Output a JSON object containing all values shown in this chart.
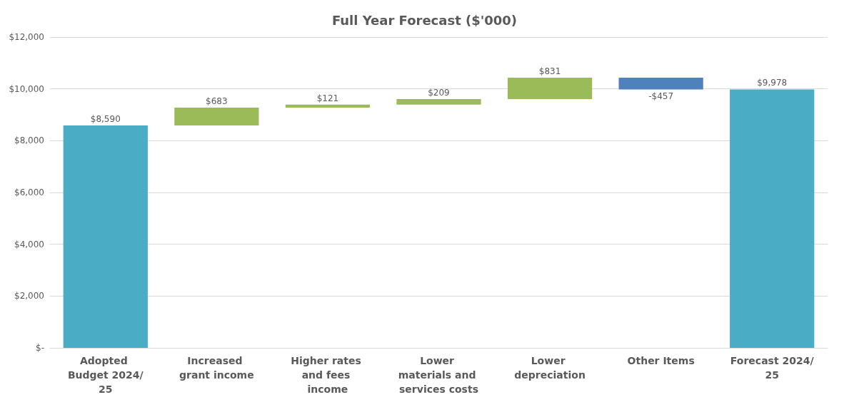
{
  "chart_data": {
    "type": "bar",
    "title": "Full Year Forecast ($'000)",
    "categories": [
      "Adopted Budget 2024/25",
      "Increased grant income",
      "Higher rates and fees income",
      "Lower materials and services costs",
      "Lower depreciation",
      "Other Items",
      "Forecast 2024/25"
    ],
    "values": [
      8590,
      683,
      121,
      209,
      831,
      -457,
      9978
    ],
    "base": [
      0,
      8590,
      9273,
      9394,
      9603,
      10434,
      0
    ],
    "colors": [
      "#4bacc6",
      "#9bbb59",
      "#9bbb59",
      "#9bbb59",
      "#9bbb59",
      "#4f81bd",
      "#4bacc6"
    ],
    "value_labels": [
      "$8,590",
      "$683",
      "$121",
      "$209",
      "$831",
      "-$457",
      "$9,978"
    ],
    "ylim": [
      0,
      12000
    ],
    "yticks": [
      {
        "value": 0,
        "label": "$-"
      },
      {
        "value": 2000,
        "label": "$2,000"
      },
      {
        "value": 4000,
        "label": "$4,000"
      },
      {
        "value": 6000,
        "label": "$6,000"
      },
      {
        "value": 8000,
        "label": "$8,000"
      },
      {
        "value": 10000,
        "label": "$10,000"
      },
      {
        "value": 12000,
        "label": "$12,000"
      }
    ],
    "grid": "y"
  }
}
